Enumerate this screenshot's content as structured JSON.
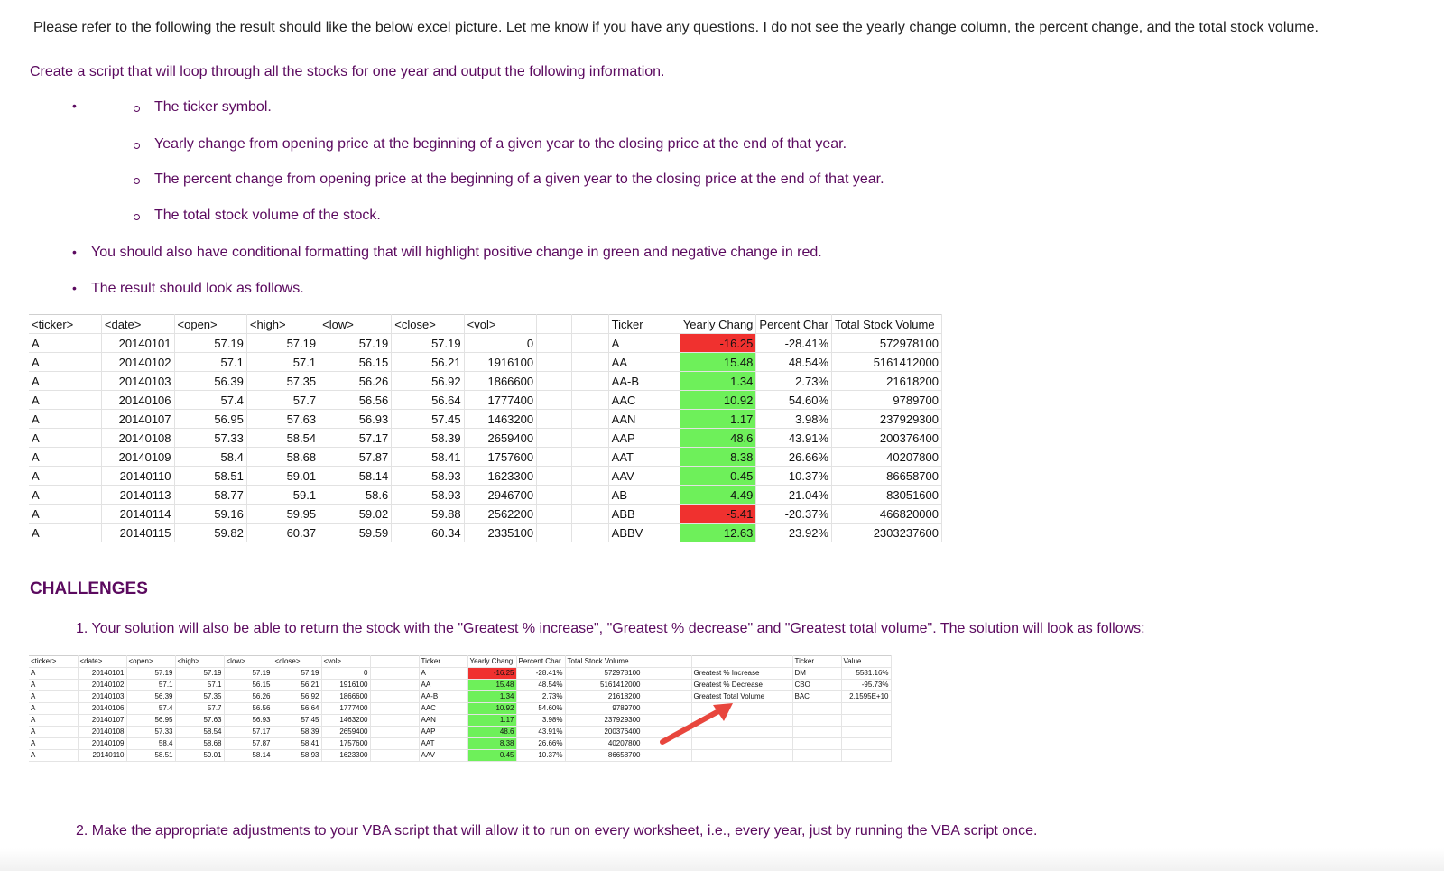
{
  "intro": "Please refer to the following the result should like the below excel picture. Let me know if you have any questions. I do not see the yearly change column, the percent change, and the total stock volume.",
  "task": "Create a script that will loop through all the stocks for one year and output the following information.",
  "sub_bullets": [
    "The ticker symbol.",
    "Yearly change from opening price at the beginning of a given year to the closing price at the end of that year.",
    "The percent change from opening price at the beginning of a given year to the closing price at the end of that year.",
    "The total stock volume of the stock."
  ],
  "bullets": [
    "You should also have conditional formatting that will highlight positive change in green and negative change in red.",
    "The result should look as follows."
  ],
  "colors": {
    "text_purple": "#5b0a5f",
    "positive": "#6ef05a",
    "negative": "#f0312f",
    "arrow": "#e8463d"
  },
  "sheet1": {
    "headers": [
      "<ticker>",
      "<date>",
      "<open>",
      "<high>",
      "<low>",
      "<close>",
      "<vol>",
      "",
      "",
      "Ticker",
      "Yearly Chang",
      "Percent Char",
      "Total Stock Volume"
    ],
    "rows": [
      [
        "A",
        "20140101",
        "57.19",
        "57.19",
        "57.19",
        "57.19",
        "0",
        "",
        "",
        "A",
        "-16.25",
        "-28.41%",
        "572978100"
      ],
      [
        "A",
        "20140102",
        "57.1",
        "57.1",
        "56.15",
        "56.21",
        "1916100",
        "",
        "",
        "AA",
        "15.48",
        "48.54%",
        "5161412000"
      ],
      [
        "A",
        "20140103",
        "56.39",
        "57.35",
        "56.26",
        "56.92",
        "1866600",
        "",
        "",
        "AA-B",
        "1.34",
        "2.73%",
        "21618200"
      ],
      [
        "A",
        "20140106",
        "57.4",
        "57.7",
        "56.56",
        "56.64",
        "1777400",
        "",
        "",
        "AAC",
        "10.92",
        "54.60%",
        "9789700"
      ],
      [
        "A",
        "20140107",
        "56.95",
        "57.63",
        "56.93",
        "57.45",
        "1463200",
        "",
        "",
        "AAN",
        "1.17",
        "3.98%",
        "237929300"
      ],
      [
        "A",
        "20140108",
        "57.33",
        "58.54",
        "57.17",
        "58.39",
        "2659400",
        "",
        "",
        "AAP",
        "48.6",
        "43.91%",
        "200376400"
      ],
      [
        "A",
        "20140109",
        "58.4",
        "58.68",
        "57.87",
        "58.41",
        "1757600",
        "",
        "",
        "AAT",
        "8.38",
        "26.66%",
        "40207800"
      ],
      [
        "A",
        "20140110",
        "58.51",
        "59.01",
        "58.14",
        "58.93",
        "1623300",
        "",
        "",
        "AAV",
        "0.45",
        "10.37%",
        "86658700"
      ],
      [
        "A",
        "20140113",
        "58.77",
        "59.1",
        "58.6",
        "58.93",
        "2946700",
        "",
        "",
        "AB",
        "4.49",
        "21.04%",
        "83051600"
      ],
      [
        "A",
        "20140114",
        "59.16",
        "59.95",
        "59.02",
        "59.88",
        "2562200",
        "",
        "",
        "ABB",
        "-5.41",
        "-20.37%",
        "466820000"
      ],
      [
        "A",
        "20140115",
        "59.82",
        "60.37",
        "59.59",
        "60.34",
        "2335100",
        "",
        "",
        "ABBV",
        "12.63",
        "23.92%",
        "2303237600"
      ]
    ]
  },
  "challenges_heading": "CHALLENGES",
  "challenge_1": "1. Your solution will also be able to return the stock with the \"Greatest % increase\", \"Greatest % decrease\" and \"Greatest total volume\". The solution will look as follows:",
  "sheet2": {
    "headers": [
      "<ticker>",
      "<date>",
      "<open>",
      "<high>",
      "<low>",
      "<close>",
      "<vol>",
      "",
      "Ticker",
      "Yearly Chang",
      "Percent Char",
      "Total Stock Volume",
      "",
      "",
      "Ticker",
      "Value"
    ],
    "rows": [
      [
        "A",
        "20140101",
        "57.19",
        "57.19",
        "57.19",
        "57.19",
        "0",
        "",
        "A",
        "-16.25",
        "-28.41%",
        "572978100",
        "",
        "Greatest % Increase",
        "DM",
        "5581.16%"
      ],
      [
        "A",
        "20140102",
        "57.1",
        "57.1",
        "56.15",
        "56.21",
        "1916100",
        "",
        "AA",
        "15.48",
        "48.54%",
        "5161412000",
        "",
        "Greatest % Decrease",
        "CBO",
        "-95.73%"
      ],
      [
        "A",
        "20140103",
        "56.39",
        "57.35",
        "56.26",
        "56.92",
        "1866600",
        "",
        "AA-B",
        "1.34",
        "2.73%",
        "21618200",
        "",
        "Greatest Total Volume",
        "BAC",
        "2.1595E+10"
      ],
      [
        "A",
        "20140106",
        "57.4",
        "57.7",
        "56.56",
        "56.64",
        "1777400",
        "",
        "AAC",
        "10.92",
        "54.60%",
        "9789700",
        "",
        "",
        "",
        ""
      ],
      [
        "A",
        "20140107",
        "56.95",
        "57.63",
        "56.93",
        "57.45",
        "1463200",
        "",
        "AAN",
        "1.17",
        "3.98%",
        "237929300",
        "",
        "",
        "",
        ""
      ],
      [
        "A",
        "20140108",
        "57.33",
        "58.54",
        "57.17",
        "58.39",
        "2659400",
        "",
        "AAP",
        "48.6",
        "43.91%",
        "200376400",
        "",
        "",
        "",
        ""
      ],
      [
        "A",
        "20140109",
        "58.4",
        "58.68",
        "57.87",
        "58.41",
        "1757600",
        "",
        "AAT",
        "8.38",
        "26.66%",
        "40207800",
        "",
        "",
        "",
        ""
      ],
      [
        "A",
        "20140110",
        "58.51",
        "59.01",
        "58.14",
        "58.93",
        "1623300",
        "",
        "AAV",
        "0.45",
        "10.37%",
        "86658700",
        "",
        "",
        "",
        ""
      ]
    ]
  },
  "challenge_2": "2. Make the appropriate adjustments to your VBA script that will allow it to run on every worksheet, i.e., every year, just by running the VBA script once."
}
